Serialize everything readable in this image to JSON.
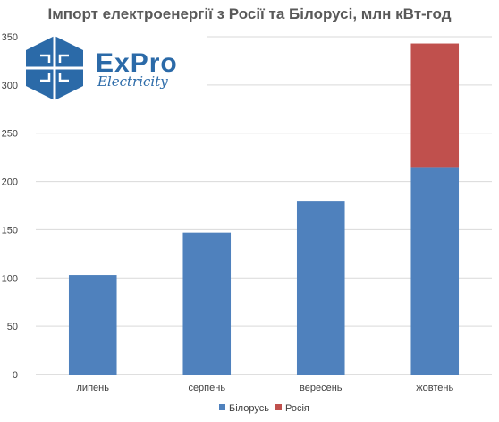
{
  "chart_data": {
    "type": "bar",
    "stacked": true,
    "title": "Імпорт електроенергії з Росії та Білорусі, млн кВт-год",
    "categories": [
      "липень",
      "серпень",
      "вересень",
      "жовтень"
    ],
    "series": [
      {
        "name": "Білорусь",
        "color": "#4f81bd",
        "values": [
          103,
          147,
          180,
          215
        ]
      },
      {
        "name": "Росія",
        "color": "#c0504d",
        "values": [
          0,
          0,
          0,
          128
        ]
      }
    ],
    "ylim": [
      0,
      350
    ],
    "yticks": [
      0,
      50,
      100,
      150,
      200,
      250,
      300,
      350
    ],
    "grid": true,
    "legend": "bottom-center"
  },
  "logo": {
    "name": "ExPro",
    "tagline": "Electricity",
    "color": "#2b6aa8",
    "icon": "hexagon-logo-icon"
  }
}
